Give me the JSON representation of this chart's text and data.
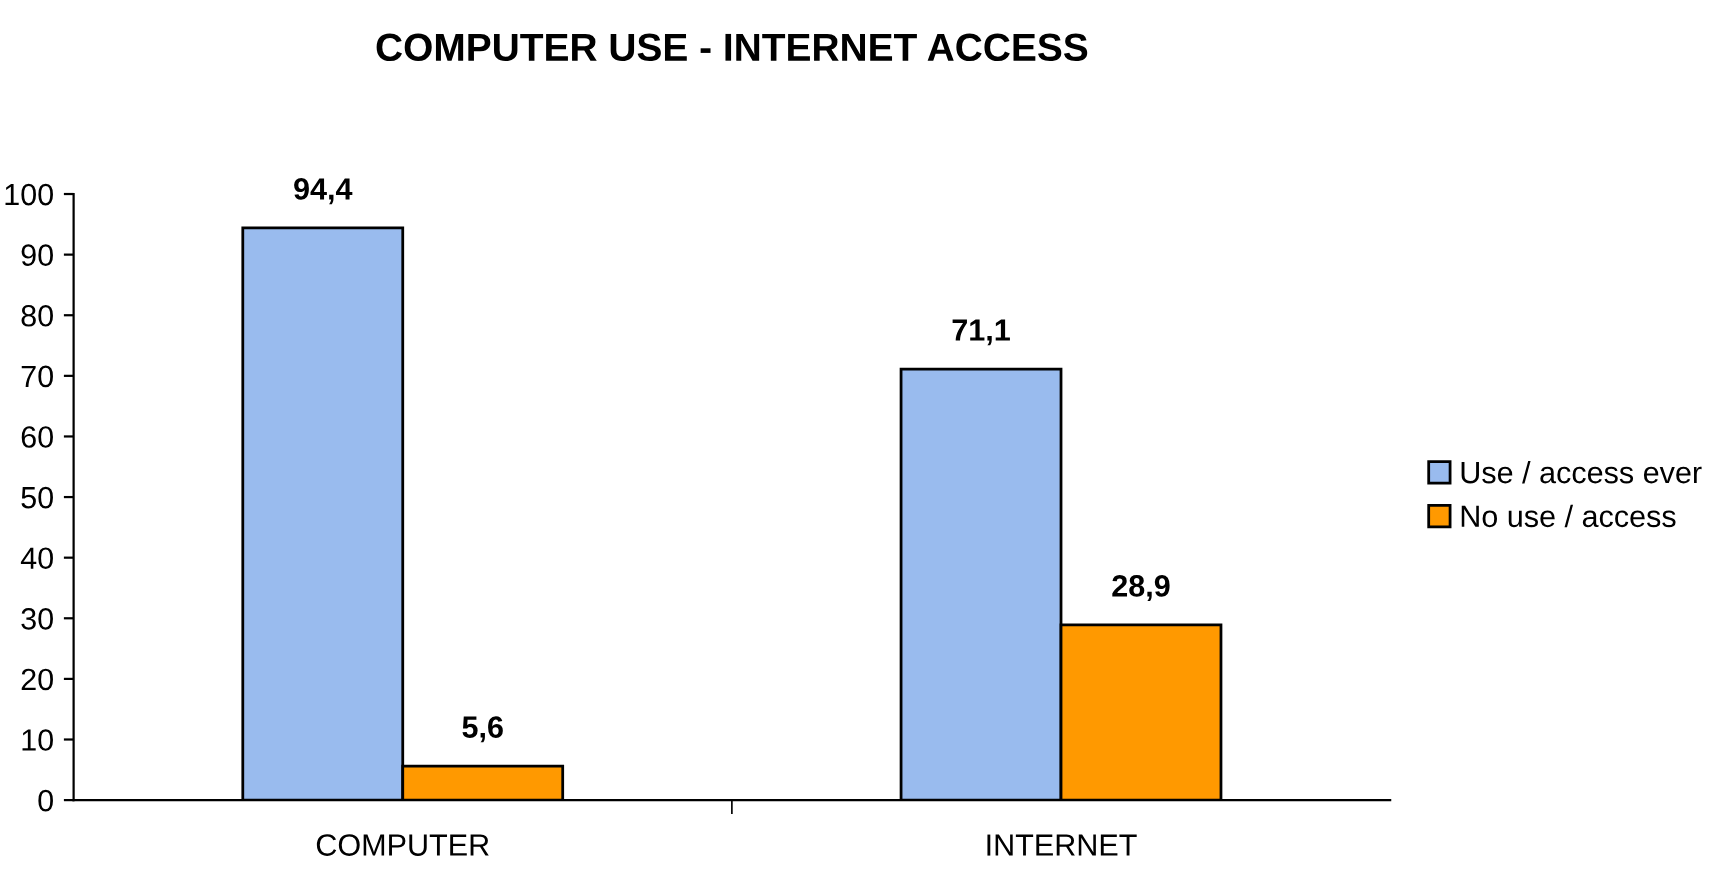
{
  "chart_data": {
    "type": "bar",
    "title": "COMPUTER USE - INTERNET ACCESS",
    "categories": [
      "COMPUTER",
      "INTERNET"
    ],
    "series": [
      {
        "name": "Use / access ever",
        "color": "#99bbee",
        "values": [
          94.4,
          71.1
        ],
        "value_labels": [
          "94,4",
          "71,1"
        ]
      },
      {
        "name": "No use / access",
        "color": "#ff9900",
        "values": [
          5.6,
          28.9
        ],
        "value_labels": [
          "5,6",
          "28,9"
        ]
      }
    ],
    "ylim": [
      0,
      100
    ],
    "yticks": [
      0,
      10,
      20,
      30,
      40,
      50,
      60,
      70,
      80,
      90,
      100
    ],
    "grid": false,
    "legend": "right"
  }
}
